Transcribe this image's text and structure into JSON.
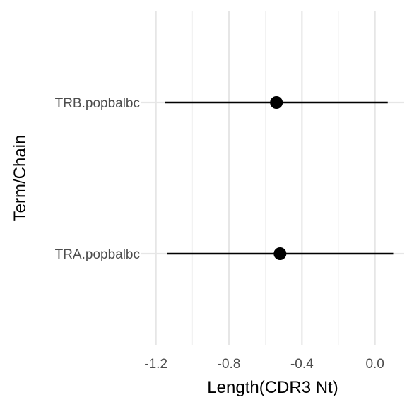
{
  "chart_data": {
    "type": "scatter",
    "subtype": "forest-plot",
    "title": "",
    "xlabel": "Length(CDR3 Nt)",
    "ylabel": "Term/Chain",
    "xlim": [
      -1.28,
      0.16
    ],
    "x_ticks": [
      -1.2,
      -0.8,
      -0.4,
      0.0
    ],
    "x_tick_labels": [
      "-1.2",
      "-0.8",
      "-0.4",
      "0.0"
    ],
    "grid": true,
    "legend": "none",
    "categories": [
      "TRB.popbalbc",
      "TRA.popbalbc"
    ],
    "points": [
      {
        "label": "TRB.popbalbc",
        "estimate": -0.54,
        "ci_low": -1.15,
        "ci_high": 0.07
      },
      {
        "label": "TRA.popbalbc",
        "estimate": -0.52,
        "ci_low": -1.14,
        "ci_high": 0.1
      }
    ],
    "colors": {
      "point": "#000000",
      "errorbar": "#000000",
      "grid": "#e6e6e6"
    }
  }
}
